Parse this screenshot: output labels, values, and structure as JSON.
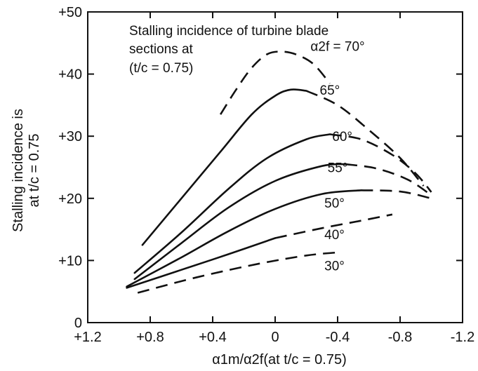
{
  "chart_data": {
    "type": "line",
    "title": "",
    "annotation": {
      "line1": "Stalling incidence of turbine blade",
      "line2": "sections at",
      "line3": "(t/c = 0.75)"
    },
    "xlabel": "α1m/α2f(at t/c = 0.75)",
    "ylabel_line1": "Stalling incidence is",
    "ylabel_line2": "at t/c = 0.75",
    "xlim": [
      1.2,
      -1.2
    ],
    "ylim": [
      0,
      50
    ],
    "x_ticks": [
      {
        "value": 1.2,
        "label": "+1.2"
      },
      {
        "value": 0.8,
        "label": "+0.8"
      },
      {
        "value": 0.4,
        "label": "+0.4"
      },
      {
        "value": 0.0,
        "label": "0"
      },
      {
        "value": -0.4,
        "label": "-0.4"
      },
      {
        "value": -0.8,
        "label": "-0.8"
      },
      {
        "value": -1.2,
        "label": "-1.2"
      }
    ],
    "y_ticks": [
      {
        "value": 0,
        "label": "0"
      },
      {
        "value": 10,
        "label": "+10"
      },
      {
        "value": 20,
        "label": "+20"
      },
      {
        "value": 30,
        "label": "+30"
      },
      {
        "value": 40,
        "label": "+40"
      },
      {
        "value": 50,
        "label": "+50"
      }
    ],
    "grid": false,
    "series": [
      {
        "name": "α2f = 70°",
        "label_at": [
          -0.4,
          44.5
        ],
        "solid": [],
        "dashed": [
          [
            0.35,
            33.5
          ],
          [
            0.25,
            37.5
          ],
          [
            0.15,
            41
          ],
          [
            0.05,
            43.2
          ],
          [
            -0.05,
            43.6
          ],
          [
            -0.15,
            43
          ],
          [
            -0.25,
            41.5
          ],
          [
            -0.35,
            38.5
          ]
        ]
      },
      {
        "name": "65°",
        "label_at": [
          -0.35,
          37.5
        ],
        "solid": [
          [
            0.85,
            12.5
          ],
          [
            0.6,
            20
          ],
          [
            0.35,
            27.5
          ],
          [
            0.15,
            33.5
          ],
          [
            0,
            36.5
          ],
          [
            -0.1,
            37.5
          ],
          [
            -0.2,
            37.3
          ]
        ],
        "dashed": [
          [
            -0.2,
            37.3
          ],
          [
            -0.4,
            35
          ],
          [
            -0.6,
            31
          ],
          [
            -0.8,
            26.5
          ],
          [
            -0.95,
            22
          ]
        ]
      },
      {
        "name": "60°",
        "label_at": [
          -0.43,
          30
        ],
        "solid": [
          [
            0.9,
            8
          ],
          [
            0.6,
            14.5
          ],
          [
            0.3,
            21.5
          ],
          [
            0.05,
            26.5
          ],
          [
            -0.2,
            29.5
          ],
          [
            -0.35,
            30.3
          ]
        ],
        "dashed": [
          [
            -0.35,
            30.3
          ],
          [
            -0.55,
            29.5
          ],
          [
            -0.75,
            27
          ],
          [
            -0.9,
            24
          ],
          [
            -1.0,
            21
          ]
        ]
      },
      {
        "name": "55°",
        "label_at": [
          -0.4,
          25
        ],
        "solid": [
          [
            0.9,
            7
          ],
          [
            0.6,
            12.8
          ],
          [
            0.3,
            18.5
          ],
          [
            0,
            22.8
          ],
          [
            -0.3,
            25.2
          ],
          [
            -0.45,
            25.5
          ]
        ],
        "dashed": [
          [
            -0.45,
            25.5
          ],
          [
            -0.65,
            24.8
          ],
          [
            -0.85,
            23
          ],
          [
            -1.0,
            20.5
          ]
        ]
      },
      {
        "name": "50°",
        "label_at": [
          -0.38,
          19.3
        ],
        "solid": [
          [
            0.95,
            5.8
          ],
          [
            0.6,
            10.5
          ],
          [
            0.3,
            14.7
          ],
          [
            0,
            18.3
          ],
          [
            -0.3,
            20.7
          ],
          [
            -0.55,
            21.3
          ]
        ],
        "dashed": [
          [
            -0.55,
            21.3
          ],
          [
            -0.8,
            21.1
          ],
          [
            -1.0,
            20
          ]
        ]
      },
      {
        "name": "40°",
        "label_at": [
          -0.38,
          14.2
        ],
        "solid": [
          [
            0.95,
            5.6
          ],
          [
            0.6,
            8.5
          ],
          [
            0.3,
            11
          ],
          [
            0,
            13.6
          ]
        ],
        "dashed": [
          [
            0,
            13.6
          ],
          [
            -0.3,
            15.2
          ],
          [
            -0.55,
            16.4
          ],
          [
            -0.75,
            17.4
          ]
        ]
      },
      {
        "name": "30°",
        "label_at": [
          -0.38,
          9.2
        ],
        "solid": [],
        "dashed": [
          [
            0.88,
            4.8
          ],
          [
            0.5,
            7.3
          ],
          [
            0.1,
            9.5
          ],
          [
            -0.2,
            10.8
          ],
          [
            -0.4,
            11.3
          ]
        ]
      }
    ],
    "legend": "none"
  }
}
